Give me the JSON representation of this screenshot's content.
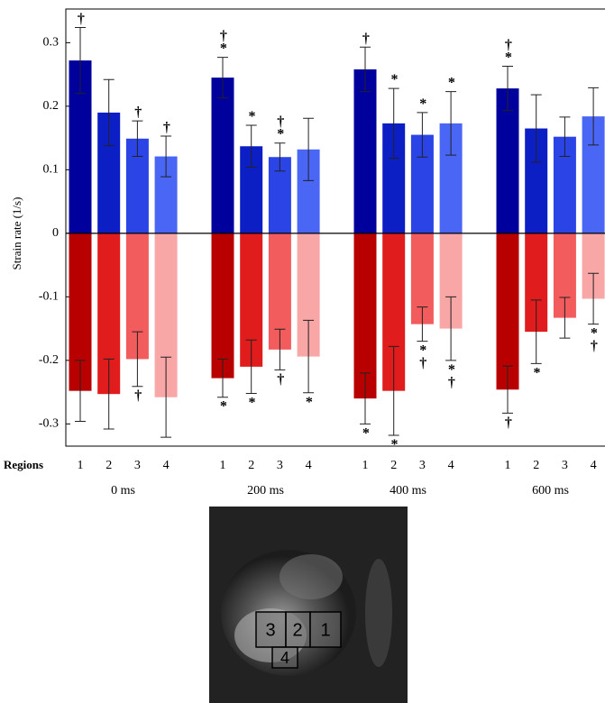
{
  "chart_data": {
    "type": "bar",
    "ylabel": "Strain rate (1/s)",
    "xlabel": "Regions",
    "categories": [
      "1",
      "2",
      "3",
      "4",
      "1",
      "2",
      "3",
      "4",
      "1",
      "2",
      "3",
      "4",
      "1",
      "2",
      "3",
      "4"
    ],
    "groups": [
      "0 ms",
      "200 ms",
      "400 ms",
      "600 ms"
    ],
    "ylim": [
      -0.335,
      0.353
    ],
    "yticks": [
      -0.3,
      -0.2,
      -0.1,
      0,
      0.1,
      0.2,
      0.3
    ],
    "series": [
      {
        "colors": [
          "#00009c",
          "#0c1fc4",
          "#2a44e6",
          "#4a66f4",
          "#00009c",
          "#0c1fc4",
          "#2a44e6",
          "#4a66f4",
          "#00009c",
          "#0c1fc4",
          "#2a44e6",
          "#4a66f4",
          "#00009c",
          "#0c1fc4",
          "#2a44e6",
          "#4a66f4"
        ],
        "values": [
          0.272,
          0.19,
          0.149,
          0.121,
          0.245,
          0.137,
          0.12,
          0.132,
          0.258,
          0.173,
          0.155,
          0.173,
          0.228,
          0.165,
          0.152,
          0.184
        ],
        "errors": [
          0.052,
          0.052,
          0.028,
          0.032,
          0.032,
          0.033,
          0.022,
          0.049,
          0.035,
          0.055,
          0.035,
          0.05,
          0.035,
          0.053,
          0.031,
          0.045
        ],
        "markers": [
          "†",
          null,
          "†",
          "†",
          "†*",
          "*",
          "†*",
          null,
          "†",
          "*",
          "*",
          "*",
          "†*",
          null,
          null,
          null
        ]
      },
      {
        "colors": [
          "#b80000",
          "#e01c1c",
          "#f25c5c",
          "#f9a6a6",
          "#b80000",
          "#e01c1c",
          "#f25c5c",
          "#f9a6a6",
          "#b80000",
          "#e01c1c",
          "#f25c5c",
          "#f9a6a6",
          "#b80000",
          "#e01c1c",
          "#f25c5c",
          "#f9a6a6"
        ],
        "values": [
          -0.248,
          -0.253,
          -0.198,
          -0.258,
          -0.228,
          -0.21,
          -0.183,
          -0.194,
          -0.26,
          -0.248,
          -0.143,
          -0.15,
          -0.246,
          -0.155,
          -0.133,
          -0.103
        ],
        "errors": [
          0.048,
          0.055,
          0.043,
          0.063,
          0.03,
          0.042,
          0.032,
          0.057,
          0.04,
          0.07,
          0.027,
          0.05,
          0.037,
          0.05,
          0.032,
          0.04
        ],
        "markers": [
          null,
          null,
          "†",
          null,
          "*",
          "*",
          "†",
          "*",
          "*",
          "*",
          "*†",
          "*†",
          "†",
          "*",
          null,
          "*†"
        ]
      }
    ]
  },
  "image": {
    "regions": [
      "3",
      "2",
      "1",
      "4"
    ]
  }
}
